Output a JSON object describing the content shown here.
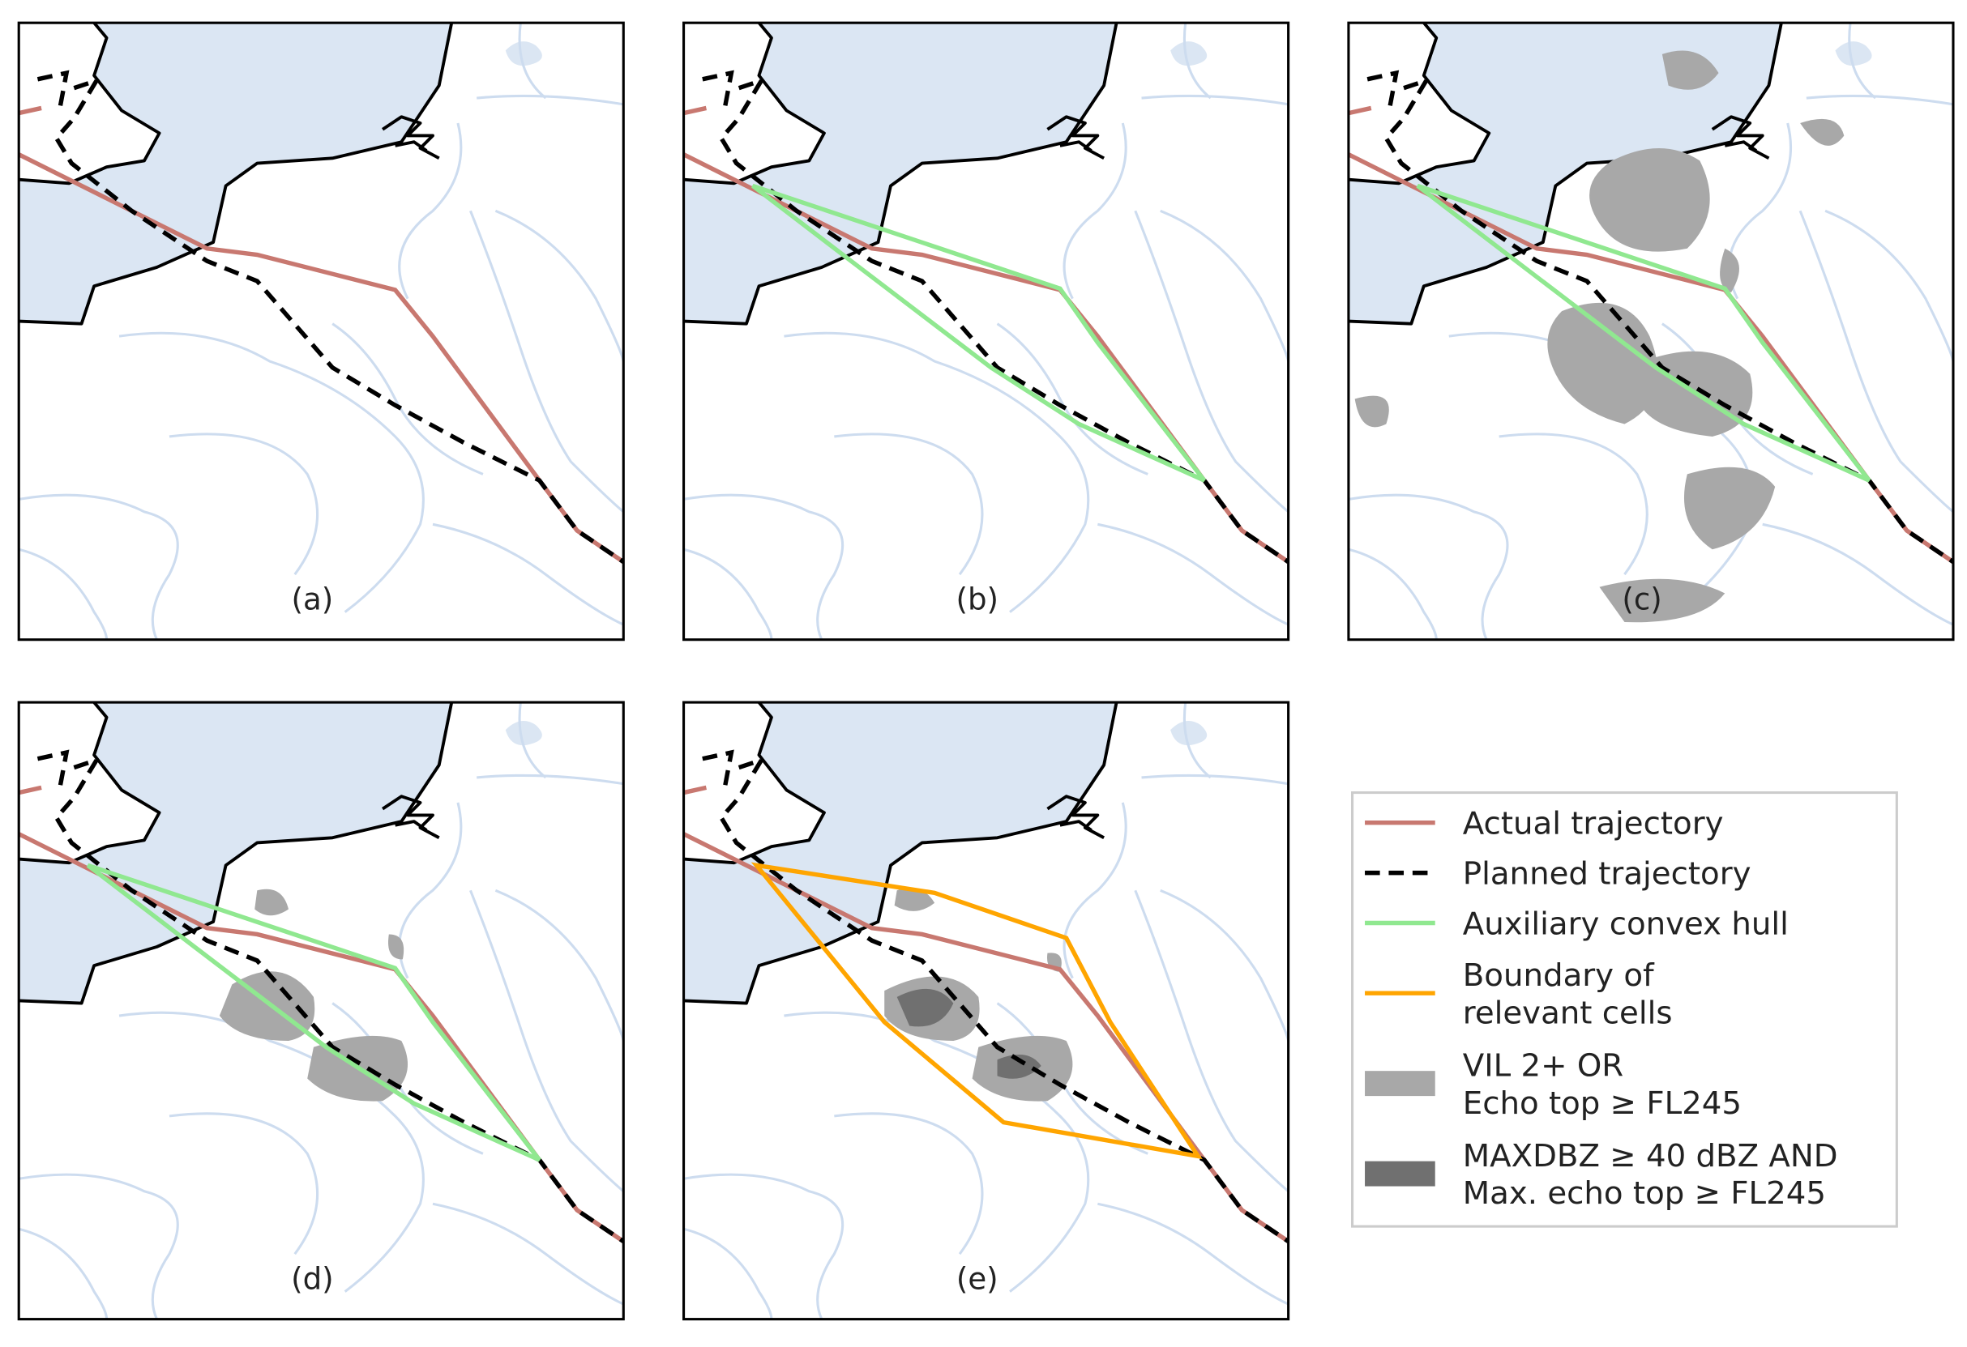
{
  "panels": [
    {
      "label": "(a)"
    },
    {
      "label": "(b)"
    },
    {
      "label": "(c)"
    },
    {
      "label": "(d)"
    },
    {
      "label": "(e)"
    }
  ],
  "legend": {
    "items": [
      {
        "lines": [
          "Actual trajectory"
        ]
      },
      {
        "lines": [
          "Planned trajectory"
        ]
      },
      {
        "lines": [
          "Auxiliary convex hull"
        ]
      },
      {
        "lines": [
          "Boundary of",
          "relevant cells"
        ]
      },
      {
        "lines": [
          "VIL 2+ OR",
          "Echo top ≥ FL245"
        ]
      },
      {
        "lines": [
          "MAXDBZ ≥ 40 dBZ AND",
          "Max. echo top ≥ FL245"
        ]
      }
    ]
  }
}
